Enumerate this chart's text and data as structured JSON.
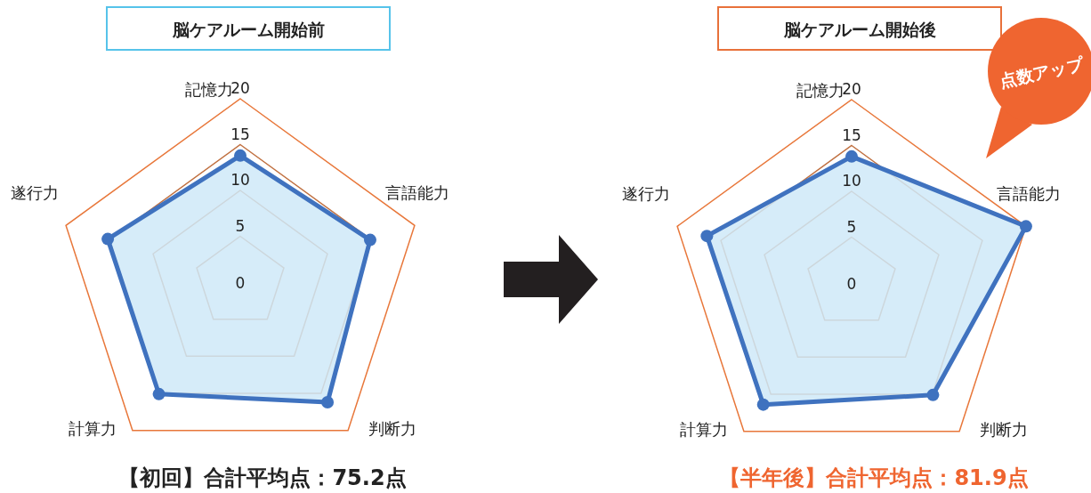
{
  "chart_data": [
    {
      "type": "radar",
      "title": "脳ケアルーム開始前",
      "categories": [
        "記憶力",
        "言語能力",
        "判断力",
        "計算力",
        "遂行力"
      ],
      "ylim": [
        0,
        20
      ],
      "yticks": [
        0,
        5,
        10,
        15,
        20
      ],
      "series": [
        {
          "color": "#3f72bf",
          "values": [
            13.8,
            14.9,
            16.2,
            15.1,
            15.2
          ]
        }
      ],
      "marker": "circle",
      "annotations": [
        "【初回】合計平均点：75.2点"
      ]
    },
    {
      "type": "radar",
      "title": "脳ケアルーム開始後",
      "categories": [
        "記憶力",
        "言語能力",
        "判断力",
        "計算力",
        "遂行力"
      ],
      "ylim": [
        0,
        20
      ],
      "yticks": [
        0,
        5,
        10,
        15,
        20
      ],
      "series": [
        {
          "color": "#3f72bf",
          "values": [
            13.8,
            20,
            15.1,
            16.4,
            16.6
          ]
        }
      ],
      "marker": "circle",
      "annotations": [
        "【半年後】合計平均点：81.9点",
        "点数アップ"
      ]
    }
  ]
}
